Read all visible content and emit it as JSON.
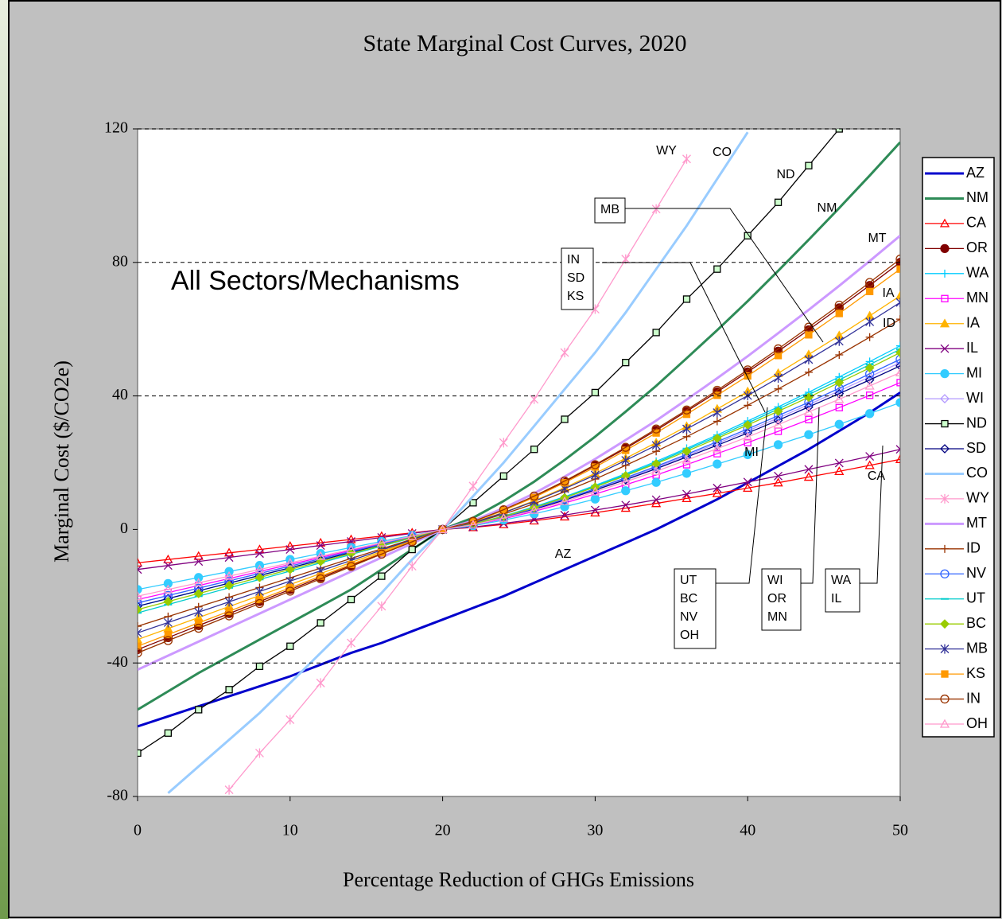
{
  "chart_data": {
    "type": "line",
    "title": "State Marginal Cost Curves, 2020",
    "xlabel": "Percentage Reduction of GHGs Emissions",
    "ylabel": "Marginal Cost ($/CO2e)",
    "subtitle": "All Sectors/Mechanisms",
    "x": [
      0,
      2,
      4,
      6,
      8,
      10,
      12,
      14,
      16,
      18,
      20,
      22,
      24,
      26,
      28,
      30,
      32,
      34,
      36,
      38,
      40,
      42,
      44,
      46,
      48,
      50
    ],
    "xlim": [
      0,
      50
    ],
    "xticks": [
      0,
      10,
      20,
      30,
      40,
      50
    ],
    "ylim": [
      -80,
      120
    ],
    "yticks": [
      -80,
      -40,
      0,
      40,
      80,
      120
    ],
    "grid": true,
    "legend": "right",
    "series": [
      {
        "name": "AZ",
        "color": "#0000cc",
        "marker": "none",
        "filled": false,
        "values": [
          -59,
          -56,
          -53,
          -50,
          -47,
          -44,
          -40.5,
          -37,
          -34,
          -30.5,
          -27,
          -23.5,
          -20,
          -16,
          -12,
          -8,
          -4,
          0,
          4.5,
          9,
          14,
          19,
          24,
          29.5,
          35,
          41
        ]
      },
      {
        "name": "NM",
        "color": "#2e8b57",
        "marker": "none",
        "filled": false,
        "values": [
          -54,
          -48.5,
          -43,
          -38,
          -33,
          -28,
          -23,
          -18,
          -12,
          -6,
          0,
          3.5,
          8.5,
          14.3,
          20.8,
          27.8,
          35.3,
          43.0,
          51.3,
          59.7,
          68.4,
          77.5,
          86.8,
          96.3,
          106.0,
          116
        ]
      },
      {
        "name": "CA",
        "color": "#ff0000",
        "marker": "triangle",
        "filled": false,
        "values": [
          -10,
          -9,
          -8,
          -7,
          -6,
          -5,
          -4,
          -3,
          -2,
          -1,
          0,
          0.6,
          1.5,
          2.6,
          3.8,
          5.0,
          6.4,
          7.8,
          9.3,
          10.8,
          12.4,
          14.0,
          15.7,
          17.4,
          19.2,
          21
        ]
      },
      {
        "name": "OR",
        "color": "#800000",
        "marker": "circle",
        "filled": true,
        "values": [
          -36,
          -32.4,
          -28.8,
          -25.2,
          -21.6,
          -18,
          -14.4,
          -10.8,
          -7.2,
          -3.6,
          0,
          2.4,
          5.8,
          9.8,
          14.3,
          19.2,
          24.3,
          29.7,
          35.4,
          41.2,
          47.2,
          53.4,
          59.8,
          66.4,
          73.1,
          80
        ]
      },
      {
        "name": "WA",
        "color": "#00ccff",
        "marker": "plus",
        "filled": false,
        "values": [
          -23,
          -20.7,
          -18.4,
          -16.1,
          -13.8,
          -11.5,
          -9.2,
          -6.9,
          -4.6,
          -2.3,
          0,
          1.7,
          4.0,
          6.8,
          9.8,
          13.2,
          16.7,
          20.4,
          24.3,
          28.3,
          32.5,
          36.7,
          41.1,
          45.7,
          50.3,
          55
        ]
      },
      {
        "name": "MN",
        "color": "#ff00ff",
        "marker": "square",
        "filled": false,
        "values": [
          -21,
          -18.9,
          -16.8,
          -14.7,
          -12.6,
          -10.5,
          -8.4,
          -6.3,
          -4.2,
          -2.1,
          0,
          1.3,
          3.2,
          5.4,
          7.9,
          10.6,
          13.4,
          16.3,
          19.4,
          22.7,
          26.0,
          29.4,
          32.9,
          36.5,
          40.2,
          44
        ]
      },
      {
        "name": "IA",
        "color": "#ffb300",
        "marker": "triangle",
        "filled": true,
        "values": [
          -33,
          -29.7,
          -26.4,
          -23.1,
          -19.8,
          -16.5,
          -13.2,
          -9.9,
          -6.6,
          -3.3,
          0,
          2.1,
          5.1,
          8.6,
          12.5,
          16.8,
          21.3,
          26.0,
          30.9,
          36.1,
          41.3,
          46.8,
          52.4,
          58.1,
          64.0,
          70
        ]
      },
      {
        "name": "IL",
        "color": "#800080",
        "marker": "x",
        "filled": false,
        "values": [
          -12,
          -10.8,
          -9.6,
          -8.4,
          -7.2,
          -6,
          -4.8,
          -3.6,
          -2.4,
          -1.2,
          0,
          0.7,
          1.8,
          3.0,
          4.3,
          5.8,
          7.3,
          8.9,
          10.6,
          12.4,
          14.2,
          16.0,
          18.0,
          19.9,
          21.9,
          24
        ]
      },
      {
        "name": "MI",
        "color": "#33ccff",
        "marker": "circle",
        "filled": true,
        "values": [
          -18,
          -16.2,
          -14.4,
          -12.6,
          -10.8,
          -9,
          -7.2,
          -5.4,
          -3.6,
          -1.8,
          0,
          1.1,
          2.8,
          4.7,
          6.8,
          9.1,
          11.6,
          14.1,
          16.8,
          19.6,
          22.4,
          25.4,
          28.4,
          31.5,
          34.7,
          38
        ]
      },
      {
        "name": "WI",
        "color": "#b399ff",
        "marker": "diamond",
        "filled": false,
        "values": [
          -22,
          -19.8,
          -17.6,
          -15.4,
          -13.2,
          -11,
          -8.8,
          -6.6,
          -4.4,
          -2.2,
          0,
          1.5,
          3.7,
          6.2,
          9.0,
          12.0,
          15.2,
          18.6,
          22.1,
          25.8,
          29.5,
          33.4,
          37.4,
          41.5,
          45.7,
          50
        ]
      },
      {
        "name": "ND",
        "color": "#000000",
        "marker": "square-green",
        "filled": false,
        "values": [
          -67,
          -61,
          -54,
          -48,
          -41,
          -35,
          -28,
          -21,
          -14,
          -6,
          0,
          8,
          16,
          24,
          33,
          41,
          50,
          59,
          69,
          78,
          88,
          98,
          109,
          120,
          null,
          null
        ]
      },
      {
        "name": "SD",
        "color": "#000080",
        "marker": "diamond",
        "filled": false,
        "values": [
          -23,
          -20.7,
          -18.4,
          -16.1,
          -13.8,
          -11.5,
          -9.2,
          -6.9,
          -4.6,
          -2.3,
          0,
          1.5,
          3.6,
          6.0,
          8.8,
          11.8,
          14.9,
          18.2,
          21.7,
          25.2,
          28.9,
          32.7,
          36.7,
          40.7,
          44.8,
          49
        ]
      },
      {
        "name": "CO",
        "color": "#99ccff",
        "marker": "none",
        "filled": false,
        "values": [
          null,
          -79,
          -71,
          -63,
          -55,
          -46,
          -37,
          -28,
          -19,
          -9,
          0,
          10,
          20,
          31,
          42,
          53,
          65,
          78,
          91,
          105,
          119,
          null,
          null,
          null,
          null,
          null
        ]
      },
      {
        "name": "WY",
        "color": "#ff99cc",
        "marker": "star",
        "filled": false,
        "values": [
          null,
          null,
          null,
          -78,
          -67,
          -57,
          -46,
          -34,
          -23,
          -11,
          0,
          13,
          26,
          39,
          53,
          66,
          81,
          96,
          111,
          null,
          null,
          null,
          null,
          null,
          null,
          null
        ]
      },
      {
        "name": "MT",
        "color": "#cc99ff",
        "marker": "none",
        "filled": false,
        "values": [
          -42,
          -37.8,
          -33.6,
          -29.4,
          -25.2,
          -21,
          -16.8,
          -12.6,
          -8.4,
          -4.2,
          0,
          2.6,
          6.4,
          10.8,
          15.8,
          21.1,
          26.8,
          32.6,
          38.9,
          45.3,
          51.9,
          58.8,
          65.8,
          73.0,
          80.4,
          88
        ]
      },
      {
        "name": "ID",
        "color": "#993300",
        "marker": "plus",
        "filled": false,
        "values": [
          -29,
          -26.1,
          -23.2,
          -20.3,
          -17.4,
          -14.5,
          -11.6,
          -8.7,
          -5.8,
          -2.9,
          0,
          1.9,
          4.6,
          7.7,
          11.3,
          15.1,
          19.2,
          23.4,
          27.8,
          32.4,
          37.2,
          42.1,
          47.1,
          52.3,
          57.6,
          63
        ]
      },
      {
        "name": "NV",
        "color": "#3366ff",
        "marker": "circle",
        "filled": false,
        "values": [
          -22,
          -19.8,
          -17.6,
          -15.4,
          -13.2,
          -11,
          -8.8,
          -6.6,
          -4.4,
          -2.2,
          0,
          1.5,
          3.7,
          6.3,
          9.1,
          12.2,
          15.5,
          18.9,
          22.5,
          26.3,
          30.1,
          34.1,
          38.1,
          42.3,
          46.6,
          51
        ]
      },
      {
        "name": "UT",
        "color": "#00cccc",
        "marker": "dash",
        "filled": false,
        "values": [
          -25,
          -22.5,
          -20,
          -17.5,
          -15,
          -12.5,
          -10,
          -7.5,
          -5,
          -2.5,
          0,
          1.6,
          3.9,
          6.6,
          9.7,
          13.0,
          16.4,
          20.0,
          23.9,
          27.8,
          31.9,
          36.1,
          40.4,
          44.8,
          49.4,
          54
        ]
      },
      {
        "name": "BC",
        "color": "#99cc00",
        "marker": "diamond",
        "filled": true,
        "values": [
          -24,
          -21.6,
          -19.2,
          -16.8,
          -14.4,
          -12,
          -9.6,
          -7.2,
          -4.8,
          -2.4,
          0,
          1.6,
          3.9,
          6.5,
          9.5,
          12.7,
          16.1,
          19.7,
          23.4,
          27.3,
          31.3,
          35.4,
          39.6,
          44.0,
          48.4,
          53
        ]
      },
      {
        "name": "MB",
        "color": "#333399",
        "marker": "star",
        "filled": false,
        "values": [
          -31,
          -27.9,
          -24.8,
          -21.7,
          -18.6,
          -15.5,
          -12.4,
          -9.3,
          -6.2,
          -3.1,
          0,
          2.0,
          5.0,
          8.4,
          12.2,
          16.3,
          20.7,
          25.2,
          30.1,
          35.0,
          40.1,
          45.4,
          50.9,
          56.4,
          62.2,
          68
        ]
      },
      {
        "name": "KS",
        "color": "#ff9900",
        "marker": "square",
        "filled": true,
        "values": [
          -35,
          -31.5,
          -28,
          -24.5,
          -21,
          -17.5,
          -14,
          -10.5,
          -7,
          -3.5,
          0,
          2.3,
          5.7,
          9.6,
          14.0,
          18.7,
          23.7,
          28.9,
          34.5,
          40.2,
          46.0,
          52.1,
          58.3,
          64.7,
          71.3,
          78
        ]
      },
      {
        "name": "IN",
        "color": "#993300",
        "marker": "circle",
        "filled": false,
        "values": [
          -37,
          -33.3,
          -29.6,
          -25.9,
          -22.2,
          -18.5,
          -14.8,
          -11.1,
          -7.4,
          -3.7,
          0,
          2.4,
          5.9,
          10.0,
          14.5,
          19.4,
          24.6,
          30.1,
          35.8,
          41.7,
          47.8,
          54.1,
          60.6,
          67.2,
          74.0,
          81
        ]
      },
      {
        "name": "OH",
        "color": "#ff99cc",
        "marker": "triangle",
        "filled": false,
        "values": [
          -20,
          -18,
          -16,
          -14,
          -12,
          -10,
          -8,
          -6,
          -4,
          -2,
          0,
          1.4,
          3.4,
          5.8,
          8.4,
          11.3,
          14.3,
          17.4,
          20.8,
          24.2,
          27.7,
          31.4,
          35.2,
          39.0,
          43.0,
          47
        ]
      }
    ],
    "annotations": [
      "WY",
      "CO",
      "ND",
      "NM",
      "MT",
      "IA",
      "ID",
      "MI",
      "CA",
      "AZ"
    ],
    "callouts": [
      [
        "MB"
      ],
      [
        "IN",
        "SD",
        "KS"
      ],
      [
        "UT",
        "BC",
        "NV",
        "OH"
      ],
      [
        "WI",
        "OR",
        "MN"
      ],
      [
        "WA",
        "IL"
      ]
    ]
  }
}
